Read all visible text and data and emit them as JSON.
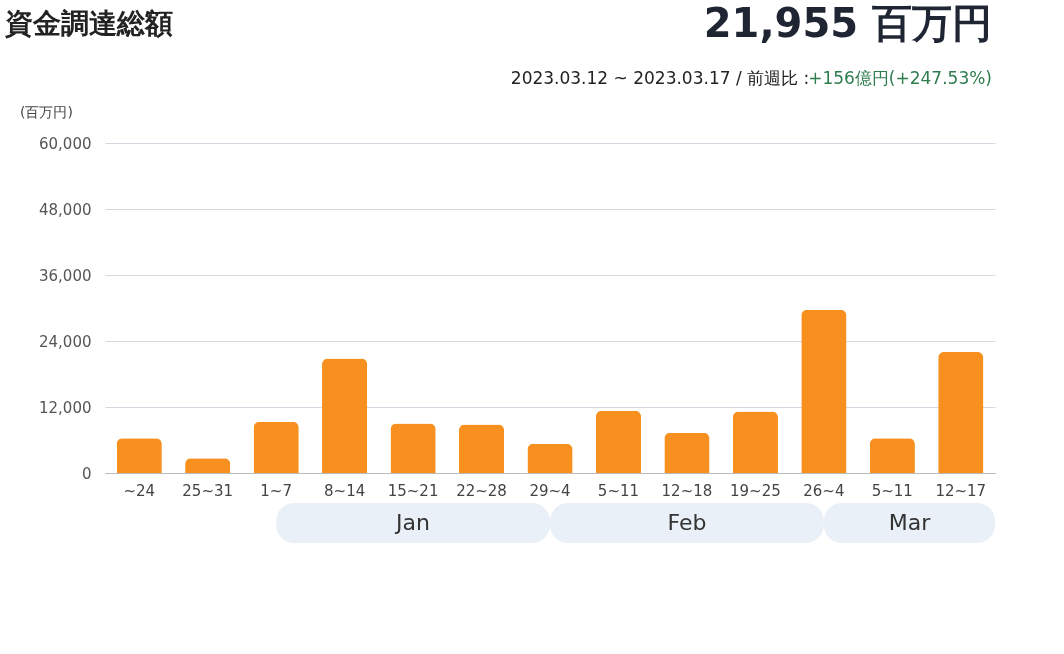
{
  "chart_data": {
    "type": "bar",
    "title": "資金調達総額",
    "subtitle": "2023.03.12 ~ 2023.03.17 / 前週比 :",
    "ylabel": "(百万円)",
    "categories": [
      "~24",
      "25~31",
      "1~7",
      "8~14",
      "15~21",
      "22~28",
      "29~4",
      "5~11",
      "12~18",
      "19~25",
      "26~4",
      "5~11",
      "12~17"
    ],
    "values": [
      6300,
      2700,
      9300,
      20800,
      9000,
      8800,
      5300,
      11300,
      7300,
      11200,
      29700,
      6300,
      22000
    ],
    "color": "#f7901e",
    "ylim": [
      0,
      60000
    ],
    "yticks": [
      {
        "value": 0,
        "label": "0"
      },
      {
        "value": 12000,
        "label": "12,000"
      },
      {
        "value": 24000,
        "label": "24,000"
      },
      {
        "value": 36000,
        "label": "36,000"
      },
      {
        "value": 48000,
        "label": "48,000"
      },
      {
        "value": 60000,
        "label": "60,000"
      }
    ],
    "grid": "y",
    "annotations": [
      "21,955 百万円",
      "+156億円(+247.53%)",
      "Jan",
      "Feb",
      "Mar"
    ]
  }
}
